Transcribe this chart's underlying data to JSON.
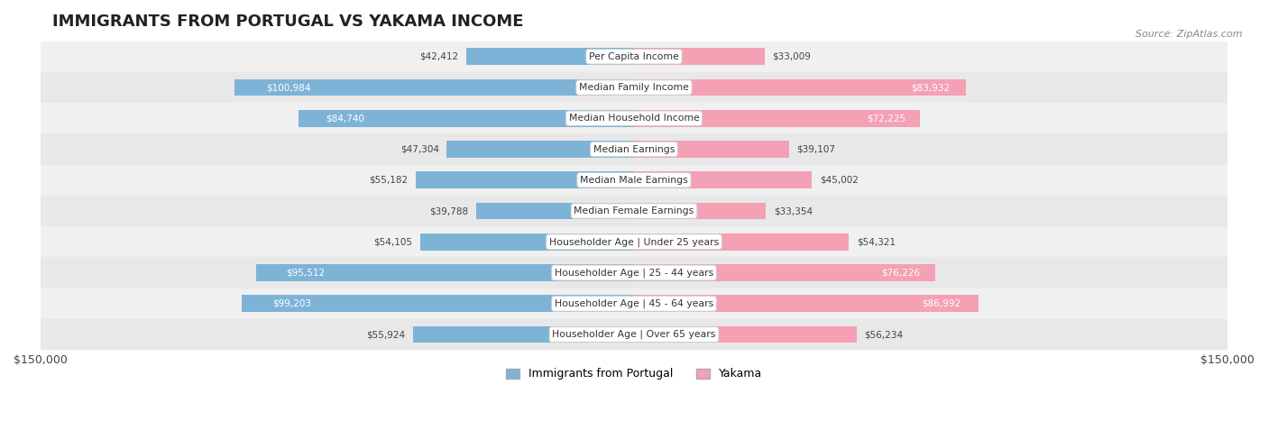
{
  "title": "IMMIGRANTS FROM PORTUGAL VS YAKAMA INCOME",
  "source": "Source: ZipAtlas.com",
  "categories": [
    "Per Capita Income",
    "Median Family Income",
    "Median Household Income",
    "Median Earnings",
    "Median Male Earnings",
    "Median Female Earnings",
    "Householder Age | Under 25 years",
    "Householder Age | 25 - 44 years",
    "Householder Age | 45 - 64 years",
    "Householder Age | Over 65 years"
  ],
  "portugal_values": [
    42412,
    100984,
    84740,
    47304,
    55182,
    39788,
    54105,
    95512,
    99203,
    55924
  ],
  "yakama_values": [
    33009,
    83932,
    72225,
    39107,
    45002,
    33354,
    54321,
    76226,
    86992,
    56234
  ],
  "portugal_labels": [
    "$42,412",
    "$100,984",
    "$84,740",
    "$47,304",
    "$55,182",
    "$39,788",
    "$54,105",
    "$95,512",
    "$99,203",
    "$55,924"
  ],
  "yakama_labels": [
    "$33,009",
    "$83,932",
    "$72,225",
    "$39,107",
    "$45,002",
    "$33,354",
    "$54,321",
    "$76,226",
    "$86,992",
    "$56,234"
  ],
  "max_value": 150000,
  "portugal_color": "#7EB3D8",
  "yakama_color": "#F4A0B5",
  "portugal_label_color_inside": "#FFFFFF",
  "portugal_label_color_outside": "#555555",
  "yakama_label_color_outside": "#555555",
  "bar_height": 0.55,
  "row_bg_colors": [
    "#F0F0F0",
    "#E8E8E8"
  ],
  "center_box_color": "#FFFFFF",
  "center_box_edge": "#CCCCCC"
}
